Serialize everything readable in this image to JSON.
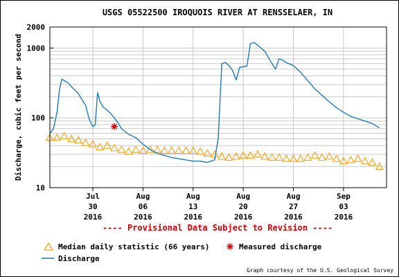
{
  "chart_data": {
    "type": "line",
    "title": "USGS 05522500 IROQUOIS RIVER AT RENSSELAER, IN",
    "ylabel": "Discharge, cubic feet per second",
    "yscale": "log",
    "ylim": [
      10,
      2000
    ],
    "y_ticks": [
      "10",
      "100",
      "1000",
      "2000"
    ],
    "xlim": [
      "2016-07-24",
      "2016-09-09"
    ],
    "x_ticks": [
      {
        "date": "2016-07-30",
        "month": "Jul",
        "day": "30",
        "year": "2016"
      },
      {
        "date": "2016-08-06",
        "month": "Aug",
        "day": "06",
        "year": "2016"
      },
      {
        "date": "2016-08-13",
        "month": "Aug",
        "day": "13",
        "year": "2016"
      },
      {
        "date": "2016-08-20",
        "month": "Aug",
        "day": "20",
        "year": "2016"
      },
      {
        "date": "2016-08-27",
        "month": "Aug",
        "day": "27",
        "year": "2016"
      },
      {
        "date": "2016-09-03",
        "month": "Sep",
        "day": "03",
        "year": "2016"
      }
    ],
    "grid": true,
    "series": [
      {
        "name": "Discharge",
        "color": "#1f7ab5",
        "x": [
          "2016-07-24",
          "2016-07-24",
          "2016-07-25",
          "2016-07-25",
          "2016-07-25",
          "2016-07-26",
          "2016-07-26",
          "2016-07-27",
          "2016-07-27",
          "2016-07-28",
          "2016-07-29",
          "2016-07-29",
          "2016-07-30",
          "2016-07-30",
          "2016-07-30",
          "2016-07-31",
          "2016-07-31",
          "2016-08-01",
          "2016-08-01",
          "2016-08-02",
          "2016-08-02",
          "2016-08-03",
          "2016-08-04",
          "2016-08-05",
          "2016-08-06",
          "2016-08-07",
          "2016-08-08",
          "2016-08-09",
          "2016-08-10",
          "2016-08-11",
          "2016-08-12",
          "2016-08-13",
          "2016-08-14",
          "2016-08-15",
          "2016-08-15",
          "2016-08-16",
          "2016-08-16",
          "2016-08-17",
          "2016-08-17",
          "2016-08-18",
          "2016-08-18",
          "2016-08-19",
          "2016-08-19",
          "2016-08-20",
          "2016-08-20",
          "2016-08-21",
          "2016-08-21",
          "2016-08-22",
          "2016-08-23",
          "2016-08-24",
          "2016-08-24",
          "2016-08-25",
          "2016-08-25",
          "2016-08-26",
          "2016-08-27",
          "2016-08-28",
          "2016-08-29",
          "2016-08-30",
          "2016-08-31",
          "2016-09-01",
          "2016-09-02",
          "2016-09-03",
          "2016-09-04",
          "2016-09-05",
          "2016-09-06",
          "2016-09-07",
          "2016-09-08"
        ],
        "y": [
          60,
          70,
          120,
          250,
          360,
          340,
          320,
          280,
          250,
          220,
          150,
          95,
          75,
          80,
          230,
          170,
          140,
          130,
          115,
          100,
          85,
          70,
          58,
          52,
          42,
          35,
          31,
          29,
          27,
          26,
          25,
          24,
          24,
          23,
          24,
          25,
          50,
          600,
          620,
          560,
          480,
          350,
          530,
          540,
          550,
          1150,
          1200,
          1100,
          900,
          600,
          500,
          700,
          670,
          620,
          560,
          450,
          340,
          260,
          210,
          170,
          140,
          120,
          105,
          97,
          90,
          83,
          72
        ]
      }
    ],
    "median": {
      "name": "Median daily statistic (66 years)",
      "color": "#f5a623",
      "x": [
        "2016-07-24",
        "2016-07-25",
        "2016-07-26",
        "2016-07-27",
        "2016-07-28",
        "2016-07-29",
        "2016-07-30",
        "2016-07-31",
        "2016-08-01",
        "2016-08-02",
        "2016-08-03",
        "2016-08-04",
        "2016-08-05",
        "2016-08-06",
        "2016-08-07",
        "2016-08-08",
        "2016-08-09",
        "2016-08-10",
        "2016-08-11",
        "2016-08-12",
        "2016-08-13",
        "2016-08-14",
        "2016-08-15",
        "2016-08-16",
        "2016-08-17",
        "2016-08-18",
        "2016-08-19",
        "2016-08-20",
        "2016-08-21",
        "2016-08-22",
        "2016-08-23",
        "2016-08-24",
        "2016-08-25",
        "2016-08-26",
        "2016-08-27",
        "2016-08-28",
        "2016-08-29",
        "2016-08-30",
        "2016-08-31",
        "2016-09-01",
        "2016-09-02",
        "2016-09-03",
        "2016-09-04",
        "2016-09-05",
        "2016-09-06",
        "2016-09-07",
        "2016-09-08"
      ],
      "y": [
        52,
        52,
        55,
        50,
        48,
        44,
        42,
        38,
        40,
        37,
        35,
        33,
        35,
        34,
        35,
        35,
        34,
        34,
        34,
        34,
        34,
        33,
        31,
        30,
        28,
        27,
        28,
        29,
        29,
        30,
        28,
        27,
        27,
        26,
        26,
        26,
        27,
        29,
        27,
        28,
        26,
        24,
        25,
        26,
        24,
        23,
        20
      ]
    },
    "measured": {
      "name": "Measured discharge",
      "color": "#cc0000",
      "x": [
        "2016-08-02"
      ],
      "y": [
        75
      ]
    },
    "legend": "bottom"
  },
  "footer": {
    "provisional": "---- Provisional Data Subject to Revision ----",
    "credit": "Graph courtesy of the U.S. Geological Survey",
    "provisional_color": "#cc0000"
  }
}
